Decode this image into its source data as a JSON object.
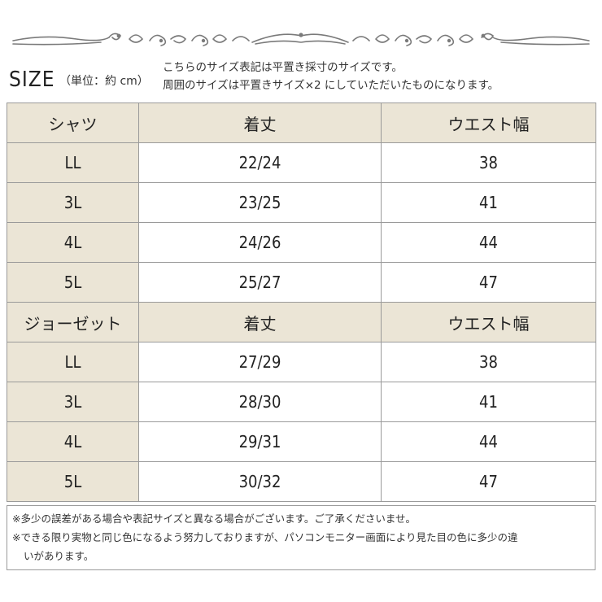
{
  "header": {
    "ornament": "decorative-scroll-divider",
    "size_title": "SIZE",
    "size_unit": "（単位：約 cm）",
    "note_line1": "こちらのサイズ表記は平置き採寸のサイズです。",
    "note_line2": "周囲のサイズは平置きサイズ×2 にしていただいたものになります。"
  },
  "colors": {
    "header_bg": "#ebe5d6",
    "border": "#9a9a9a",
    "ornament": "#7a7a7a"
  },
  "tables": [
    {
      "item": "シャツ",
      "col_length": "着丈",
      "col_waist": "ウエスト幅",
      "rows": [
        {
          "size": "LL",
          "length": "22/24",
          "waist": "38"
        },
        {
          "size": "3L",
          "length": "23/25",
          "waist": "41"
        },
        {
          "size": "4L",
          "length": "24/26",
          "waist": "44"
        },
        {
          "size": "5L",
          "length": "25/27",
          "waist": "47"
        }
      ]
    },
    {
      "item": "ジョーゼット",
      "col_length": "着丈",
      "col_waist": "ウエスト幅",
      "rows": [
        {
          "size": "LL",
          "length": "27/29",
          "waist": "38"
        },
        {
          "size": "3L",
          "length": "28/30",
          "waist": "41"
        },
        {
          "size": "4L",
          "length": "29/31",
          "waist": "44"
        },
        {
          "size": "5L",
          "length": "30/32",
          "waist": "47"
        }
      ]
    }
  ],
  "footer": {
    "note1": "※多少の誤差がある場合や表記サイズと異なる場合がございます。ご了承くださいませ。",
    "note2": "※できる限り実物と同じ色になるよう努力しておりますが、パソコンモニター画面により見た目の色に多少の違",
    "note2_cont": "いがあります。"
  }
}
